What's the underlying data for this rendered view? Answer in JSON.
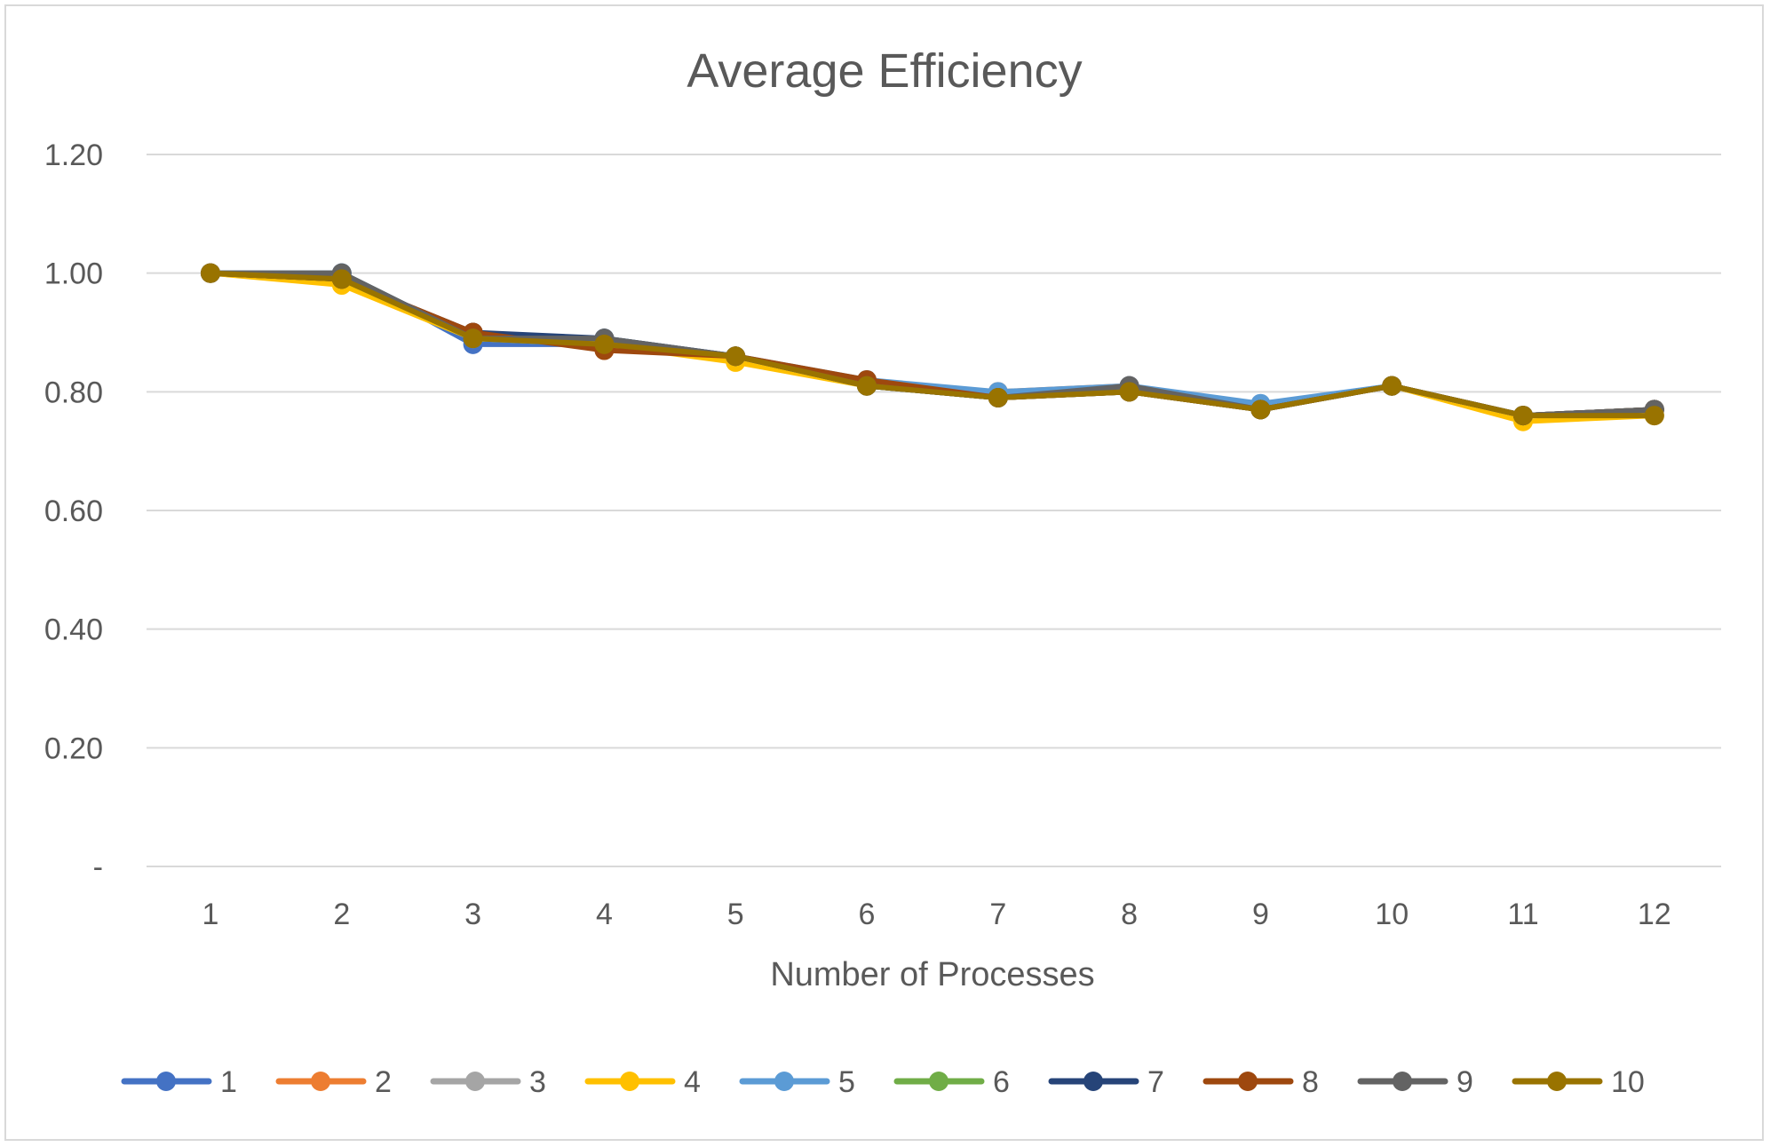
{
  "chart_data": {
    "type": "line",
    "title": "Average Efficiency",
    "xlabel": "Number of Processes",
    "ylabel": "",
    "x": [
      1,
      2,
      3,
      4,
      5,
      6,
      7,
      8,
      9,
      10,
      11,
      12
    ],
    "x_tick_labels": [
      "1",
      "2",
      "3",
      "4",
      "5",
      "6",
      "7",
      "8",
      "9",
      "10",
      "11",
      "12"
    ],
    "ylim": [
      0,
      1.2
    ],
    "y_ticks": [
      0,
      0.2,
      0.4,
      0.6,
      0.8,
      1.0,
      1.2
    ],
    "y_tick_labels": [
      "-",
      "0.20",
      "0.40",
      "0.60",
      "0.80",
      "1.00",
      "1.20"
    ],
    "grid": true,
    "legend_position": "bottom",
    "series": [
      {
        "name": "1",
        "color": "#4472C4",
        "values": [
          1.0,
          1.0,
          0.88,
          0.88,
          0.86,
          0.81,
          0.79,
          0.81,
          0.77,
          0.81,
          0.76,
          0.77
        ]
      },
      {
        "name": "2",
        "color": "#ED7D31",
        "values": [
          1.0,
          0.99,
          0.9,
          0.88,
          0.86,
          0.81,
          0.8,
          0.81,
          0.77,
          0.81,
          0.76,
          0.77
        ]
      },
      {
        "name": "3",
        "color": "#A5A5A5",
        "values": [
          1.0,
          0.99,
          0.89,
          0.88,
          0.86,
          0.81,
          0.79,
          0.8,
          0.77,
          0.81,
          0.76,
          0.76
        ]
      },
      {
        "name": "4",
        "color": "#FFC000",
        "values": [
          1.0,
          0.98,
          0.89,
          0.88,
          0.85,
          0.81,
          0.79,
          0.8,
          0.77,
          0.81,
          0.75,
          0.76
        ]
      },
      {
        "name": "5",
        "color": "#5B9BD5",
        "values": [
          1.0,
          1.0,
          0.89,
          0.89,
          0.86,
          0.82,
          0.8,
          0.81,
          0.78,
          0.81,
          0.76,
          0.77
        ]
      },
      {
        "name": "6",
        "color": "#70AD47",
        "values": [
          1.0,
          0.99,
          0.89,
          0.88,
          0.86,
          0.81,
          0.79,
          0.8,
          0.77,
          0.81,
          0.76,
          0.77
        ]
      },
      {
        "name": "7",
        "color": "#264478",
        "values": [
          1.0,
          0.99,
          0.9,
          0.89,
          0.86,
          0.81,
          0.79,
          0.8,
          0.77,
          0.81,
          0.76,
          0.77
        ]
      },
      {
        "name": "8",
        "color": "#9E480E",
        "values": [
          1.0,
          0.99,
          0.9,
          0.87,
          0.86,
          0.82,
          0.79,
          0.8,
          0.77,
          0.81,
          0.76,
          0.77
        ]
      },
      {
        "name": "9",
        "color": "#636363",
        "values": [
          1.0,
          1.0,
          0.89,
          0.89,
          0.86,
          0.81,
          0.79,
          0.81,
          0.77,
          0.81,
          0.76,
          0.77
        ]
      },
      {
        "name": "10",
        "color": "#997300",
        "values": [
          1.0,
          0.99,
          0.89,
          0.88,
          0.86,
          0.81,
          0.79,
          0.8,
          0.77,
          0.81,
          0.76,
          0.76
        ]
      }
    ]
  }
}
